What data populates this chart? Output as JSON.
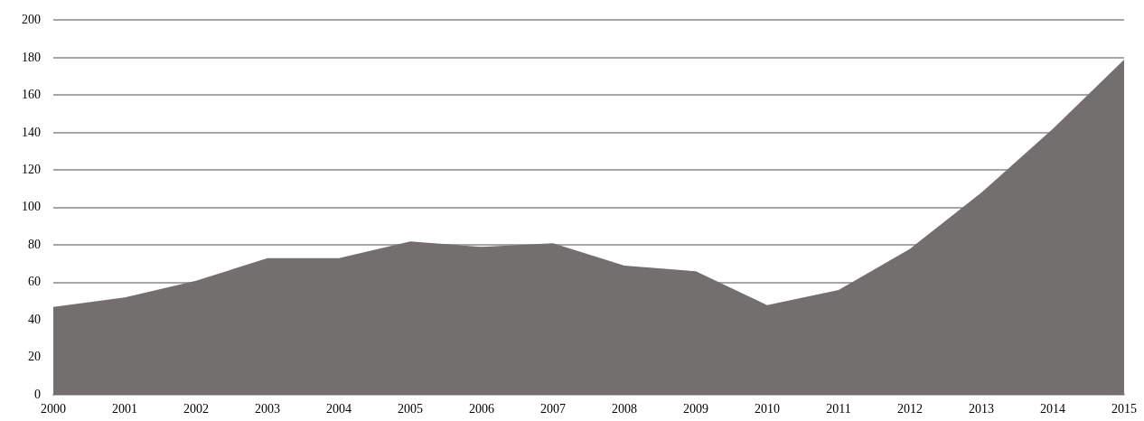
{
  "chart_data": {
    "type": "area",
    "categories": [
      "2000",
      "2001",
      "2002",
      "2003",
      "2004",
      "2005",
      "2006",
      "2007",
      "2008",
      "2009",
      "2010",
      "2011",
      "2012",
      "2013",
      "2014",
      "2015"
    ],
    "values": [
      47,
      52,
      61,
      73,
      73,
      82,
      79,
      81,
      69,
      66,
      48,
      56,
      78,
      108,
      142,
      179
    ],
    "color": "#736f6e",
    "ylim": [
      0,
      200
    ],
    "yticks": [
      0,
      20,
      40,
      60,
      80,
      100,
      120,
      140,
      160,
      180,
      200
    ],
    "grid": "y",
    "legend": false
  }
}
